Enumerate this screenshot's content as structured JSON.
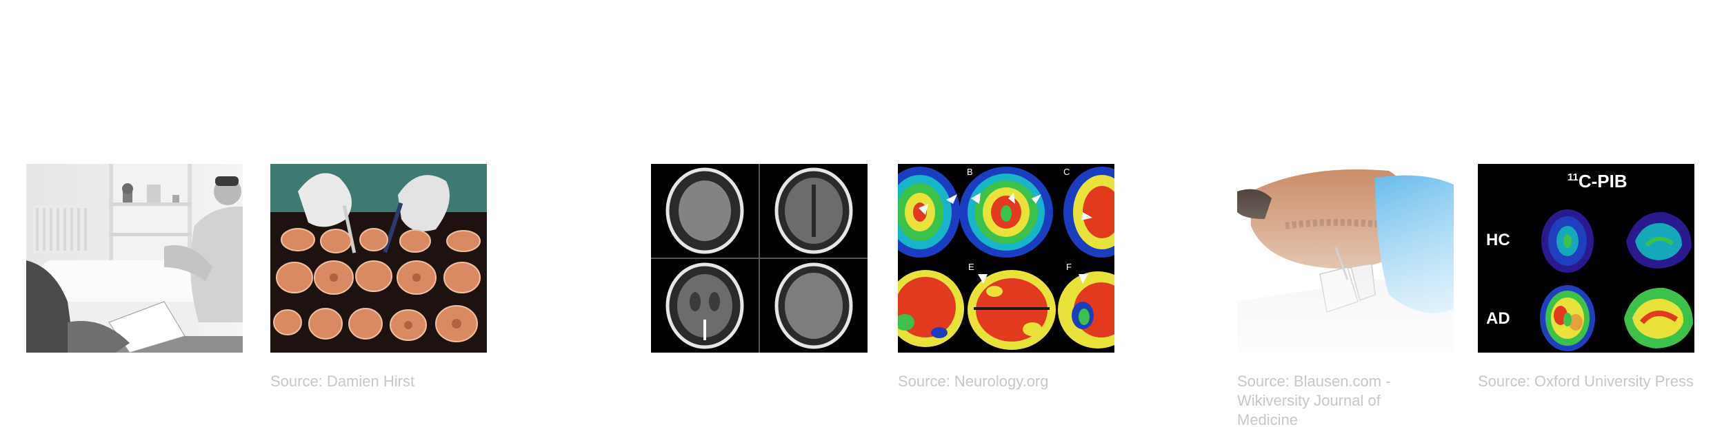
{
  "figures": [
    {
      "id": "therapy-session",
      "caption": ""
    },
    {
      "id": "brain-slices",
      "caption": "Source: Damien Hirst"
    },
    {
      "id": "ct-scans",
      "caption": ""
    },
    {
      "id": "pet-scans",
      "caption": "Source: Neurology.org",
      "labels": [
        "B",
        "C",
        "E",
        "F"
      ]
    },
    {
      "id": "lumbar-puncture",
      "caption": "Source: Blausen.com - Wikiversity Journal of Medicine"
    },
    {
      "id": "pib-scans",
      "caption": "Source: Oxford University Press",
      "title_sup": "11",
      "title_main": "C-PIB",
      "row_labels": [
        "HC",
        "AD"
      ]
    }
  ]
}
